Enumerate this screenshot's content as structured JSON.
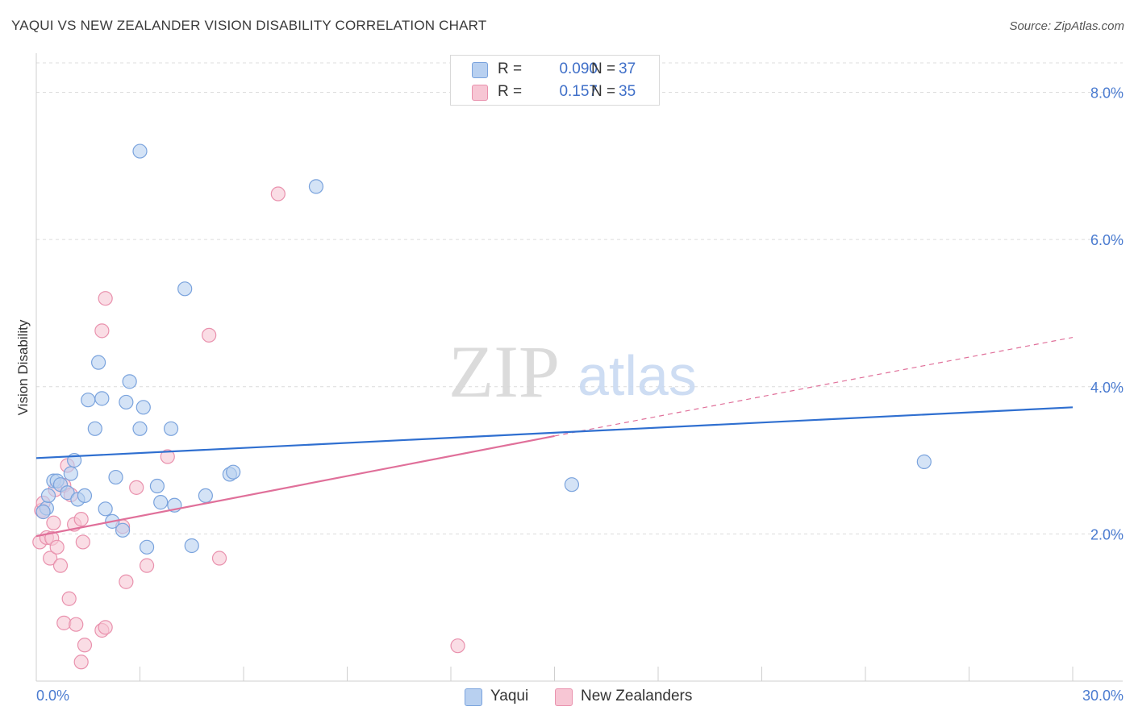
{
  "title": "YAQUI VS NEW ZEALANDER VISION DISABILITY CORRELATION CHART",
  "source": "Source: ZipAtlas.com",
  "watermark": {
    "zip": "ZIP",
    "atlas": "atlas"
  },
  "legend": {
    "rows": [
      {
        "r_label": "R =",
        "r_value": "0.090",
        "n_label": "N =",
        "n_value": "37"
      },
      {
        "r_label": "R =",
        "r_value": "0.157",
        "n_label": "N =",
        "n_value": "35"
      }
    ]
  },
  "bottom_legend": {
    "series1": "Yaqui",
    "series2": "New Zealanders"
  },
  "colors": {
    "blue_fill": "#b8d0f0",
    "blue_stroke": "#7aa3dd",
    "blue_line": "#2f6fd0",
    "pink_fill": "#f7c6d4",
    "pink_stroke": "#e991ad",
    "pink_line": "#e0709a",
    "grid": "#dcdcdc",
    "tick_text": "#4a7bd0"
  },
  "chart_data": {
    "type": "scatter",
    "title": "YAQUI VS NEW ZEALANDER VISION DISABILITY CORRELATION CHART",
    "xlabel": "",
    "ylabel": "Vision Disability",
    "xlim": [
      0,
      30
    ],
    "ylim": [
      0,
      8.4
    ],
    "x_tick_labels": [
      "0.0%",
      "30.0%"
    ],
    "y_ticks": [
      2,
      4,
      6,
      8
    ],
    "y_tick_labels": [
      "2.0%",
      "4.0%",
      "6.0%",
      "8.0%"
    ],
    "series": [
      {
        "name": "Yaqui",
        "r": 0.09,
        "n": 37,
        "trend": {
          "x0": 0,
          "y0": 3.03,
          "x1": 30,
          "y1": 3.72
        },
        "points": [
          [
            0.3,
            2.35
          ],
          [
            0.35,
            2.52
          ],
          [
            0.5,
            2.72
          ],
          [
            0.6,
            2.72
          ],
          [
            0.7,
            2.67
          ],
          [
            0.9,
            2.56
          ],
          [
            1.0,
            2.82
          ],
          [
            1.1,
            3.0
          ],
          [
            1.2,
            2.47
          ],
          [
            1.4,
            2.52
          ],
          [
            1.5,
            3.82
          ],
          [
            1.7,
            3.43
          ],
          [
            1.8,
            4.33
          ],
          [
            1.9,
            3.84
          ],
          [
            2.0,
            2.34
          ],
          [
            2.2,
            2.17
          ],
          [
            2.3,
            2.77
          ],
          [
            2.5,
            2.05
          ],
          [
            2.6,
            3.79
          ],
          [
            2.7,
            4.07
          ],
          [
            3.0,
            7.2
          ],
          [
            3.0,
            3.43
          ],
          [
            3.1,
            3.72
          ],
          [
            3.2,
            1.82
          ],
          [
            3.5,
            2.65
          ],
          [
            3.6,
            2.43
          ],
          [
            3.9,
            3.43
          ],
          [
            4.0,
            2.39
          ],
          [
            4.3,
            5.33
          ],
          [
            4.5,
            1.84
          ],
          [
            4.9,
            2.52
          ],
          [
            5.6,
            2.81
          ],
          [
            5.7,
            2.84
          ],
          [
            8.1,
            6.72
          ],
          [
            15.5,
            2.67
          ],
          [
            25.7,
            2.98
          ],
          [
            0.2,
            2.3
          ]
        ]
      },
      {
        "name": "New Zealanders",
        "r": 0.157,
        "n": 35,
        "trend": {
          "x0": 0,
          "y0": 1.97,
          "x1": 15.0,
          "y1": 3.33,
          "dash_x1": 30,
          "dash_y1": 4.67
        },
        "points": [
          [
            0.1,
            1.89
          ],
          [
            0.15,
            2.32
          ],
          [
            0.2,
            2.42
          ],
          [
            0.3,
            1.95
          ],
          [
            0.4,
            1.67
          ],
          [
            0.45,
            1.94
          ],
          [
            0.5,
            2.15
          ],
          [
            0.6,
            1.82
          ],
          [
            0.7,
            1.57
          ],
          [
            0.8,
            2.66
          ],
          [
            0.8,
            0.79
          ],
          [
            0.9,
            2.93
          ],
          [
            0.95,
            1.12
          ],
          [
            1.0,
            2.53
          ],
          [
            1.1,
            2.13
          ],
          [
            1.15,
            0.77
          ],
          [
            1.3,
            2.2
          ],
          [
            1.3,
            0.26
          ],
          [
            1.35,
            1.89
          ],
          [
            1.4,
            0.49
          ],
          [
            1.9,
            4.76
          ],
          [
            1.9,
            0.69
          ],
          [
            2.0,
            5.2
          ],
          [
            2.0,
            0.73
          ],
          [
            2.5,
            2.1
          ],
          [
            2.6,
            1.35
          ],
          [
            2.9,
            2.63
          ],
          [
            3.2,
            1.57
          ],
          [
            3.8,
            3.05
          ],
          [
            5.0,
            4.7
          ],
          [
            5.3,
            1.67
          ],
          [
            7.0,
            6.62
          ],
          [
            12.2,
            0.48
          ],
          [
            0.2,
            2.3
          ],
          [
            0.55,
            2.6
          ]
        ]
      }
    ]
  }
}
